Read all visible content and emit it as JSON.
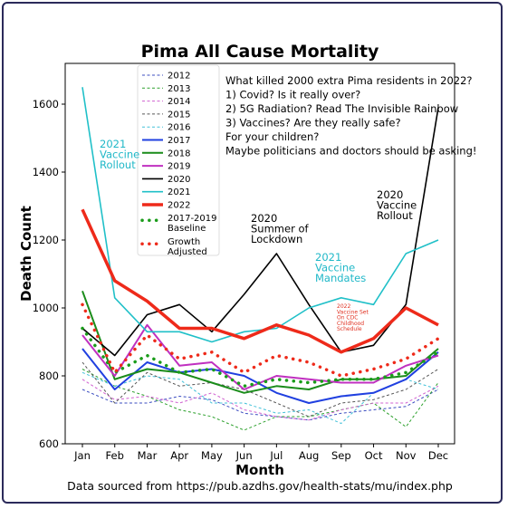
{
  "chart_data": {
    "type": "line",
    "title": "Pima All Cause Mortality",
    "xlabel": "Month",
    "ylabel": "Death Count",
    "categories": [
      "Jan",
      "Feb",
      "Mar",
      "Apr",
      "May",
      "Jun",
      "Jul",
      "Aug",
      "Sep",
      "Oct",
      "Nov",
      "Dec"
    ],
    "ylim": [
      600,
      1720
    ],
    "yticks": [
      600,
      800,
      1000,
      1200,
      1400,
      1600
    ],
    "series": [
      {
        "name": "2012",
        "color": "#3b4cc0",
        "style": "dashed",
        "width": 1,
        "values": [
          760,
          720,
          720,
          740,
          730,
          690,
          680,
          670,
          690,
          700,
          710,
          760
        ]
      },
      {
        "name": "2013",
        "color": "#2ca02c",
        "style": "dashed",
        "width": 1,
        "values": [
          820,
          770,
          740,
          700,
          680,
          640,
          680,
          680,
          700,
          720,
          650,
          780
        ]
      },
      {
        "name": "2014",
        "color": "#d060d0",
        "style": "dashed",
        "width": 1,
        "values": [
          790,
          730,
          740,
          720,
          750,
          700,
          680,
          670,
          700,
          720,
          720,
          770
        ]
      },
      {
        "name": "2015",
        "color": "#555555",
        "style": "dashed",
        "width": 1,
        "values": [
          840,
          720,
          810,
          770,
          780,
          760,
          720,
          680,
          720,
          730,
          760,
          820
        ]
      },
      {
        "name": "2016",
        "color": "#40c0d8",
        "style": "dashed",
        "width": 1,
        "values": [
          810,
          770,
          800,
          790,
          720,
          720,
          690,
          700,
          660,
          750,
          790,
          760
        ]
      },
      {
        "name": "2017",
        "color": "#2040e0",
        "style": "solid",
        "width": 2,
        "values": [
          880,
          760,
          840,
          810,
          820,
          800,
          750,
          720,
          740,
          750,
          790,
          870
        ]
      },
      {
        "name": "2018",
        "color": "#1a8c1a",
        "style": "solid",
        "width": 2,
        "values": [
          1050,
          790,
          820,
          810,
          780,
          750,
          770,
          760,
          790,
          790,
          800,
          880
        ]
      },
      {
        "name": "2019",
        "color": "#c030c0",
        "style": "solid",
        "width": 2,
        "values": [
          920,
          800,
          950,
          830,
          840,
          760,
          800,
          790,
          780,
          780,
          830,
          860
        ]
      },
      {
        "name": "2020",
        "color": "#000000",
        "style": "solid",
        "width": 1.6,
        "values": [
          940,
          860,
          980,
          1010,
          930,
          1040,
          1160,
          1010,
          870,
          890,
          1010,
          1590
        ]
      },
      {
        "name": "2021",
        "color": "#20c0c8",
        "style": "solid",
        "width": 1.6,
        "values": [
          1650,
          1030,
          930,
          930,
          900,
          930,
          940,
          1000,
          1030,
          1010,
          1160,
          1200
        ]
      },
      {
        "name": "2022",
        "color": "#ee2a1a",
        "style": "solid",
        "width": 3.5,
        "values": [
          1290,
          1080,
          1020,
          940,
          940,
          910,
          950,
          920,
          870,
          910,
          1000,
          950
        ]
      },
      {
        "name": "2017-2019\nBaseline",
        "color": "#1a9c1a",
        "style": "dotted",
        "width": 3.5,
        "values": [
          940,
          810,
          860,
          810,
          820,
          770,
          790,
          780,
          790,
          790,
          810,
          870
        ]
      },
      {
        "name": "Growth\nAdjusted",
        "color": "#ee2a1a",
        "style": "dotted",
        "width": 3.5,
        "values": [
          1010,
          810,
          920,
          850,
          870,
          810,
          860,
          840,
          800,
          820,
          850,
          910
        ]
      }
    ],
    "annotations": [
      {
        "id": "question",
        "color": "#000000",
        "lines": [
          "What killed 2000 extra Pima residents in 2022?",
          "1) Covid? Is it really over?",
          "2) 5G Radiation? Read The Invisible Rainbow",
          "3) Vaccines? Are they really safe?",
          "    For your children?",
          "Maybe politicians and doctors should be asking!"
        ]
      },
      {
        "id": "vaccine-rollout-2021",
        "color": "#20b8c8",
        "lines": [
          "2021",
          "Vaccine",
          "Rollout"
        ]
      },
      {
        "id": "summer-lockdown-2020",
        "color": "#000000",
        "lines": [
          "2020",
          "Summer of",
          "Lockdown"
        ]
      },
      {
        "id": "vaccine-mandates-2021",
        "color": "#20b8c8",
        "lines": [
          "2021",
          "Vaccine",
          "Mandates"
        ]
      },
      {
        "id": "vaccine-rollout-2020",
        "color": "#000000",
        "lines": [
          "2020",
          "Vaccine",
          "Rollout"
        ]
      },
      {
        "id": "cdc-schedule-2022",
        "color": "#e03020",
        "lines": [
          "2022",
          "Vaccine Set",
          "On CDC",
          "Childhood",
          "Schedule"
        ]
      }
    ],
    "source": "Data sourced from https://pub.azdhs.gov/health-stats/mu/index.php",
    "grid": false,
    "legend": "top-left"
  }
}
